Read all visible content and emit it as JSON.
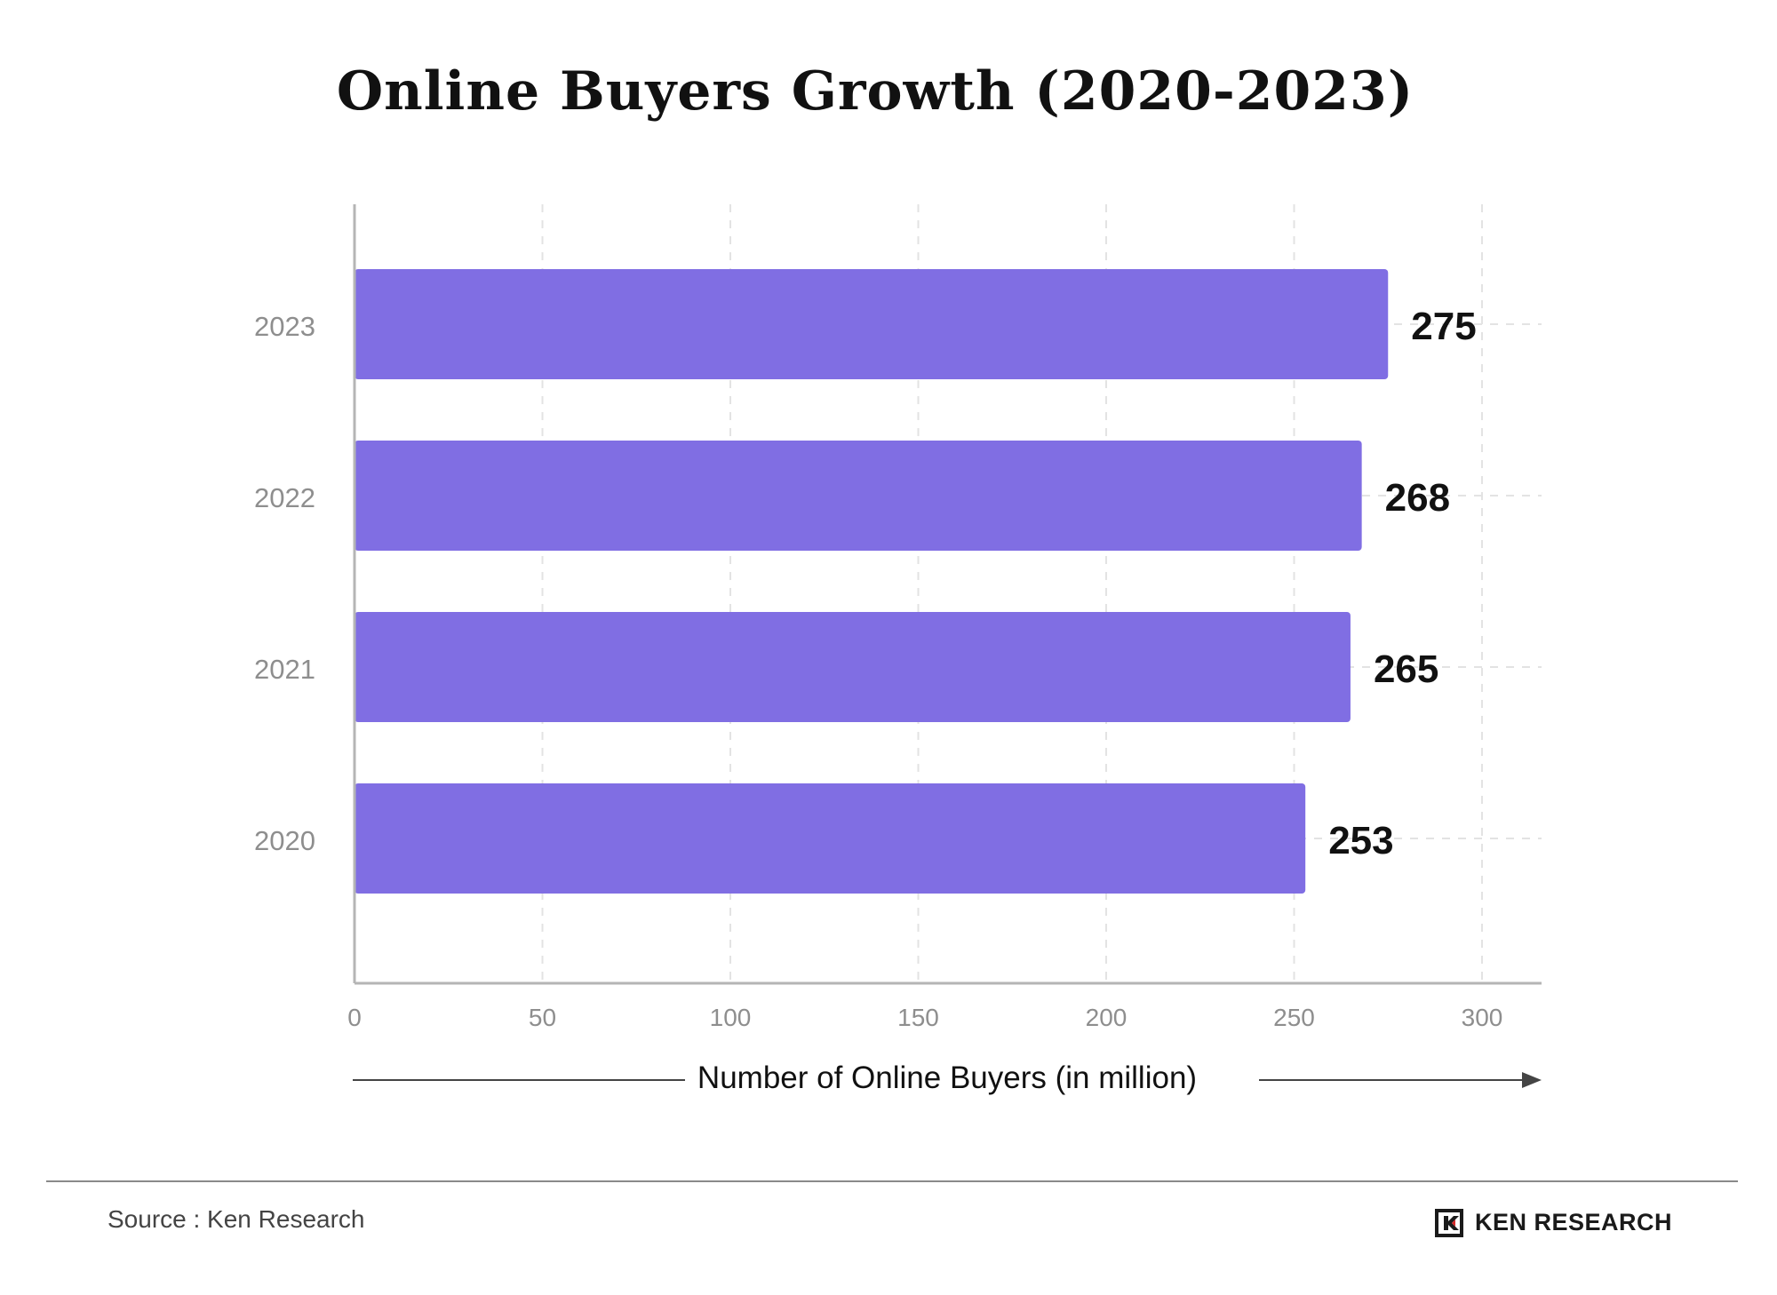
{
  "chart_data": {
    "type": "bar",
    "orientation": "horizontal",
    "title": "Online Buyers Growth (2020-2023)",
    "xlabel": "Number of Online Buyers (in million)",
    "ylabel": "",
    "categories": [
      "2023",
      "2022",
      "2021",
      "2020"
    ],
    "values": [
      275,
      268,
      265,
      253
    ],
    "xlim": [
      0,
      320
    ],
    "xticks": [
      "0",
      "50",
      "100",
      "150",
      "200",
      "250",
      "300"
    ],
    "grid": true,
    "bar_color": "#806EE3"
  },
  "footer": {
    "source": "Source : Ken Research",
    "logo_text": "KEN RESEARCH"
  }
}
